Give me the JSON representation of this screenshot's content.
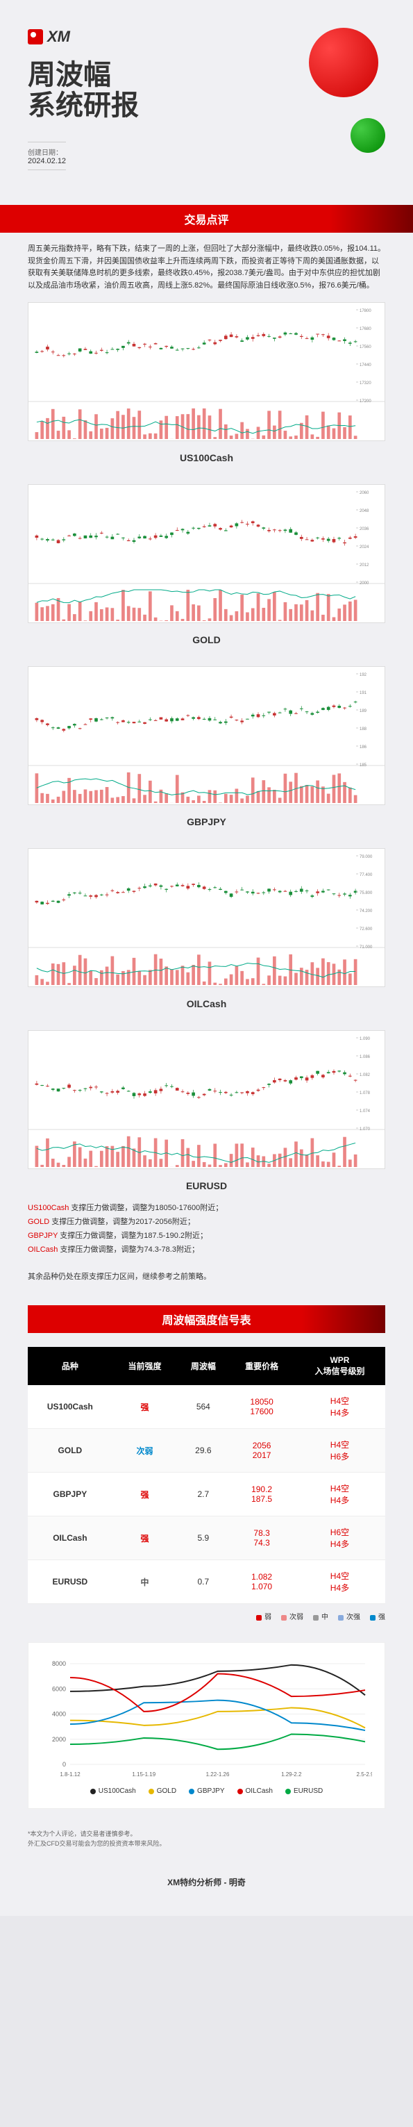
{
  "logo": {
    "text": "XM"
  },
  "header": {
    "title_line1": "周波幅",
    "title_line2": "系统研报",
    "date_label": "创建日期：",
    "date_value": "2024.02.12"
  },
  "section_commentary_title": "交易点评",
  "commentary_text": "周五美元指数持平，略有下跌，结束了一周的上涨，但回吐了大部分涨幅中，最终收跌0.05%，报104.11。现货金价周五下滑，并因美国国债收益率上升而连续两周下跌，而投资者正等待下周的美国通胀数据，以获取有关美联储降息时机的更多线索，最终收跌0.45%，报2038.7美元/盎司。由于对中东供应的担忧加剧以及成品油市场收紧，油价周五收高，周线上涨5.82%。最终国际原油日线收涨0.5%，报76.6美元/桶。",
  "charts": [
    {
      "name": "US100Cash",
      "y_max": 17800,
      "y_min": 17200,
      "lower_color": "#d00"
    },
    {
      "name": "GOLD",
      "y_max": 2060,
      "y_min": 2000,
      "lower_color": "#d00"
    },
    {
      "name": "GBPJPY",
      "y_max": 192,
      "y_min": 185,
      "lower_color": "#d00"
    },
    {
      "name": "OILCash",
      "y_max": 79,
      "y_min": 71,
      "lower_color": "#d00"
    },
    {
      "name": "EURUSD",
      "y_max": 1.09,
      "y_min": 1.07,
      "lower_color": "#d00"
    }
  ],
  "adjustments": [
    {
      "sym": "US100Cash",
      "text": " 支撑压力做调整，调整为18050-17600附近；"
    },
    {
      "sym": "GOLD",
      "text": " 支撑压力做调整，调整为2017-2056附近；"
    },
    {
      "sym": "GBPJPY",
      "text": " 支撑压力做调整，调整为187.5-190.2附近；"
    },
    {
      "sym": "OILCash",
      "text": " 支撑压力做调整，调整为74.3-78.3附近；"
    }
  ],
  "adj_footer": "其余品种仍处在原支撑压力区间，继续参考之前策略。",
  "signal_header": "周波幅强度信号表",
  "signal_cols": [
    "品种",
    "当前强度",
    "周波幅",
    "重要价格",
    "WPR\n入场信号级别"
  ],
  "signal_rows": [
    {
      "sym": "US100Cash",
      "strength": "强",
      "strength_class": "strong",
      "range": "564",
      "price_hi": "18050",
      "price_lo": "17600",
      "wpr_hi": "H4空",
      "wpr_lo": "H4多"
    },
    {
      "sym": "GOLD",
      "strength": "次弱",
      "strength_class": "weak",
      "range": "29.6",
      "price_hi": "2056",
      "price_lo": "2017",
      "wpr_hi": "H4空",
      "wpr_lo": "H6多"
    },
    {
      "sym": "GBPJPY",
      "strength": "强",
      "strength_class": "strong",
      "range": "2.7",
      "price_hi": "190.2",
      "price_lo": "187.5",
      "wpr_hi": "H4空",
      "wpr_lo": "H4多"
    },
    {
      "sym": "OILCash",
      "strength": "强",
      "strength_class": "strong",
      "range": "5.9",
      "price_hi": "78.3",
      "price_lo": "74.3",
      "wpr_hi": "H6空",
      "wpr_lo": "H4多"
    },
    {
      "sym": "EURUSD",
      "strength": "中",
      "strength_class": "mid",
      "range": "0.7",
      "price_hi": "1.082",
      "price_lo": "1.070",
      "wpr_hi": "H4空",
      "wpr_lo": "H4多"
    }
  ],
  "strength_legend": [
    {
      "label": "弱",
      "color": "#d00"
    },
    {
      "label": "次弱",
      "color": "#e88"
    },
    {
      "label": "中",
      "color": "#999"
    },
    {
      "label": "次强",
      "color": "#8ad"
    },
    {
      "label": "强",
      "color": "#08c"
    }
  ],
  "wave_chart": {
    "y_ticks": [
      0,
      2000,
      4000,
      6000,
      8000
    ],
    "x_labels": [
      "1.8-1.12",
      "1.15-1.19",
      "1.22-1.26",
      "1.29-2.2",
      "2.5-2.9"
    ],
    "series": [
      {
        "name": "US100Cash",
        "color": "#222",
        "values": [
          5800,
          6200,
          7400,
          7900,
          5500
        ]
      },
      {
        "name": "GOLD",
        "color": "#e6b800",
        "values": [
          3500,
          3100,
          4200,
          4500,
          2900
        ]
      },
      {
        "name": "GBPJPY",
        "color": "#0088cc",
        "values": [
          3200,
          4900,
          5100,
          3300,
          2700
        ]
      },
      {
        "name": "OILCash",
        "color": "#d00",
        "values": [
          6900,
          4200,
          7200,
          5400,
          5900
        ]
      },
      {
        "name": "EURUSD",
        "color": "#00aa44",
        "values": [
          1600,
          2100,
          1200,
          2400,
          1800
        ]
      }
    ]
  },
  "disclaimer_lines": [
    "*本文为个人评论，请交易者谨慎参考。",
    "外汇及CFD交易可能会为您的投资资本带来风险。"
  ],
  "footer_text": "XM特约分析师 - 明奇"
}
